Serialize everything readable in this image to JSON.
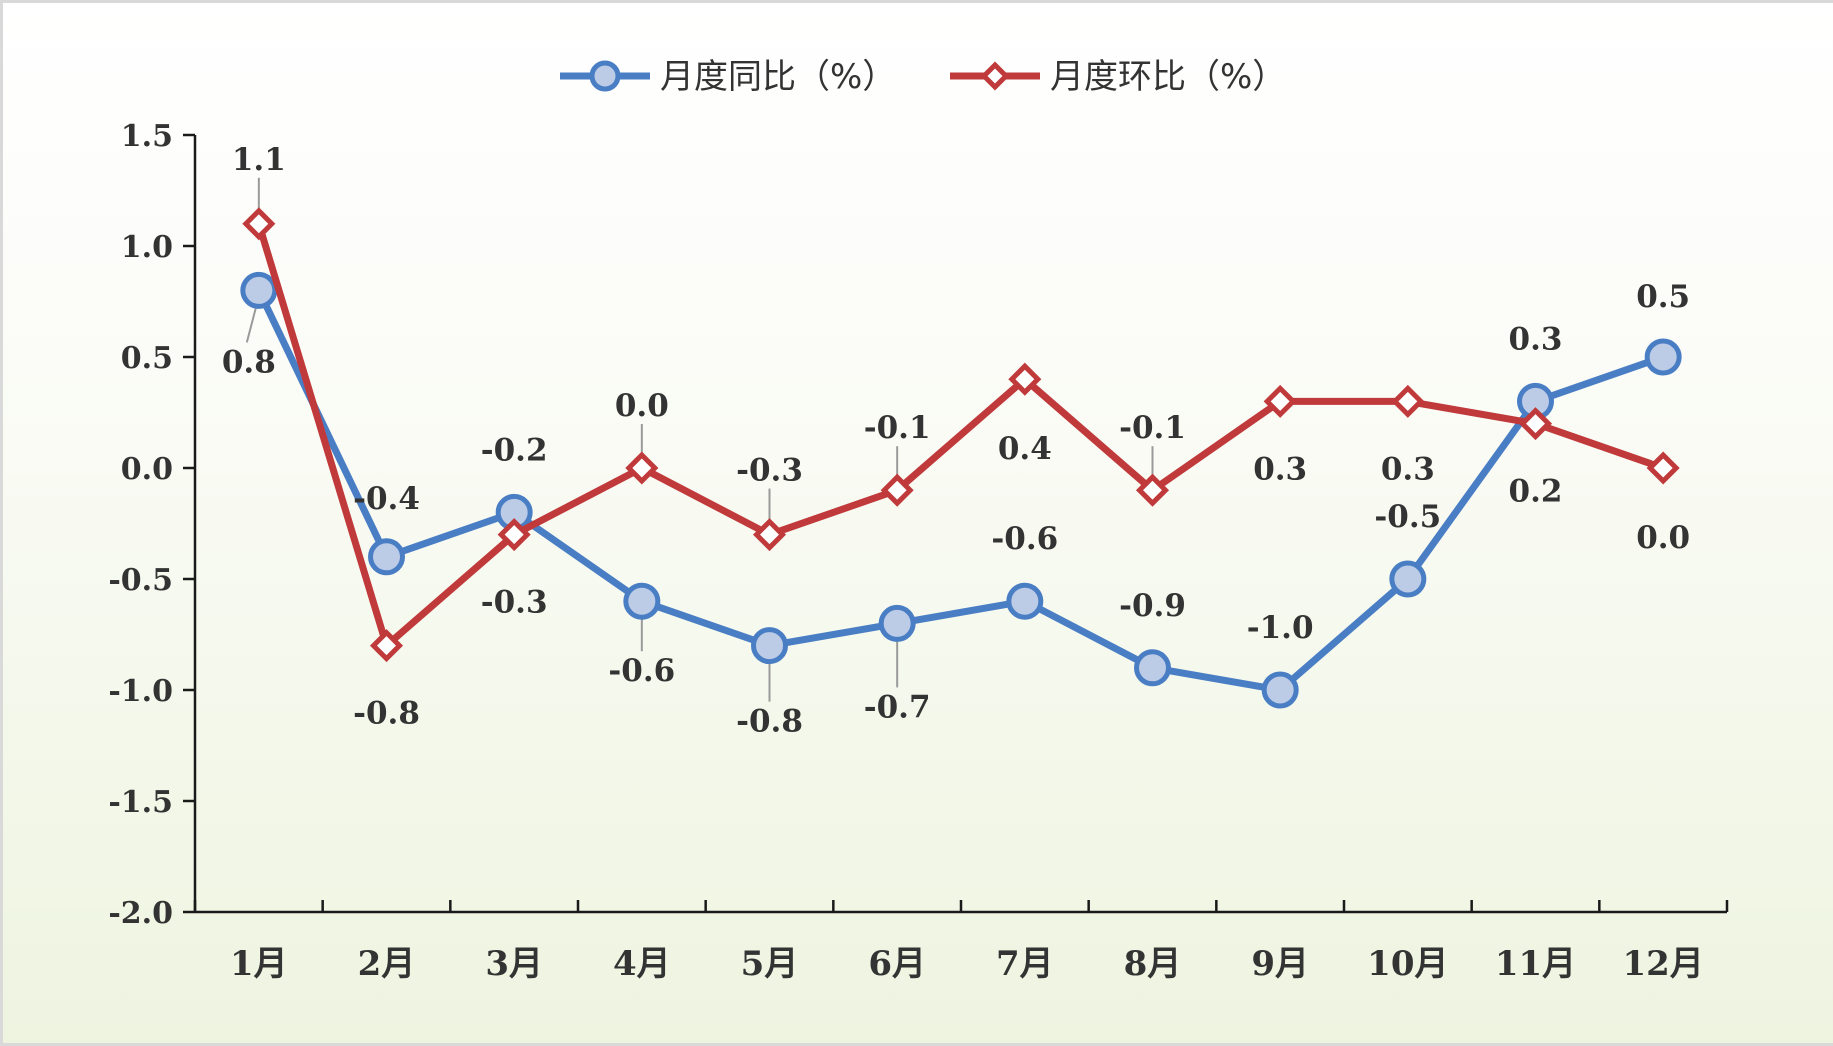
{
  "chart_data": {
    "type": "line",
    "categories": [
      "1月",
      "2月",
      "3月",
      "4月",
      "5月",
      "6月",
      "7月",
      "8月",
      "9月",
      "10月",
      "11月",
      "12月"
    ],
    "series": [
      {
        "name": "月度同比（%）",
        "values": [
          0.8,
          -0.4,
          -0.2,
          -0.6,
          -0.8,
          -0.7,
          -0.6,
          -0.9,
          -1.0,
          -0.5,
          0.3,
          0.5
        ],
        "labels": [
          "0.8",
          "-0.4",
          "-0.2",
          "-0.6",
          "-0.8",
          "-0.7",
          "-0.6",
          "-0.9",
          "-1.0",
          "-0.5",
          "0.3",
          "0.5"
        ],
        "color": "#4a7ec4",
        "marker": "circle",
        "marker_fill": "#bccbe6"
      },
      {
        "name": "月度环比（%）",
        "values": [
          1.1,
          -0.8,
          -0.3,
          0.0,
          -0.3,
          -0.1,
          0.4,
          -0.1,
          0.3,
          0.3,
          0.2,
          0.0
        ],
        "labels": [
          "1.1",
          "-0.8",
          "-0.3",
          "0.0",
          "-0.3",
          "-0.1",
          "0.4",
          "-0.1",
          "0.3",
          "0.3",
          "0.2",
          "0.0"
        ],
        "color": "#c0393b",
        "marker": "diamond",
        "marker_fill": "#ffffff"
      }
    ],
    "y_ticks": [
      "1.5",
      "1.0",
      "0.5",
      "0.0",
      "-0.5",
      "-1.0",
      "-1.5",
      "-2.0"
    ],
    "ylim": [
      -2.0,
      1.5
    ],
    "grid": false,
    "legend": "top-center"
  }
}
